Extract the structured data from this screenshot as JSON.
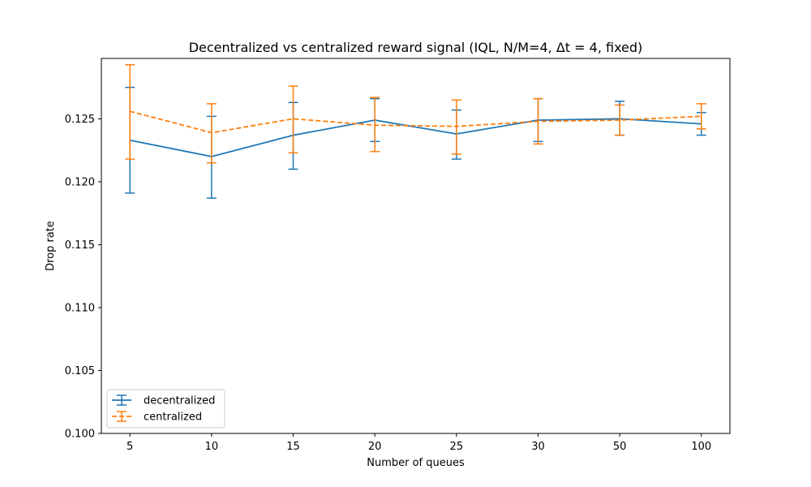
{
  "chart_data": {
    "type": "line",
    "title": "Decentralized vs centralized reward signal (IQL, N/M=4, Δt = 4, fixed)",
    "xlabel": "Number of queues",
    "ylabel": "Drop rate",
    "categories": [
      "5",
      "10",
      "15",
      "20",
      "25",
      "30",
      "50",
      "100"
    ],
    "ylim": [
      0.1,
      0.1298
    ],
    "yticks": [
      "0.100",
      "0.105",
      "0.110",
      "0.115",
      "0.120",
      "0.125"
    ],
    "ytick_values": [
      0.1,
      0.105,
      0.11,
      0.115,
      0.12,
      0.125
    ],
    "grid": false,
    "legend_position": "lower-left",
    "series": [
      {
        "name": "decentralized",
        "color": "#1f77b4",
        "line_style": "solid",
        "values": [
          0.1233,
          0.122,
          0.1237,
          0.1249,
          0.1238,
          0.1249,
          0.125,
          0.1246
        ],
        "err_low": [
          0.1191,
          0.1187,
          0.121,
          0.1232,
          0.1218,
          0.1232,
          0.1237,
          0.1237
        ],
        "err_high": [
          0.1275,
          0.1252,
          0.1263,
          0.1266,
          0.1257,
          0.1266,
          0.1264,
          0.1255
        ]
      },
      {
        "name": "centralized",
        "color": "#ff7f0e",
        "line_style": "dashed",
        "values": [
          0.1256,
          0.1239,
          0.125,
          0.1245,
          0.1244,
          0.1248,
          0.1249,
          0.1252
        ],
        "err_low": [
          0.1218,
          0.1215,
          0.1223,
          0.1224,
          0.1222,
          0.123,
          0.1237,
          0.1242
        ],
        "err_high": [
          0.1293,
          0.1262,
          0.1276,
          0.1267,
          0.1265,
          0.1266,
          0.1261,
          0.1262
        ]
      }
    ]
  }
}
